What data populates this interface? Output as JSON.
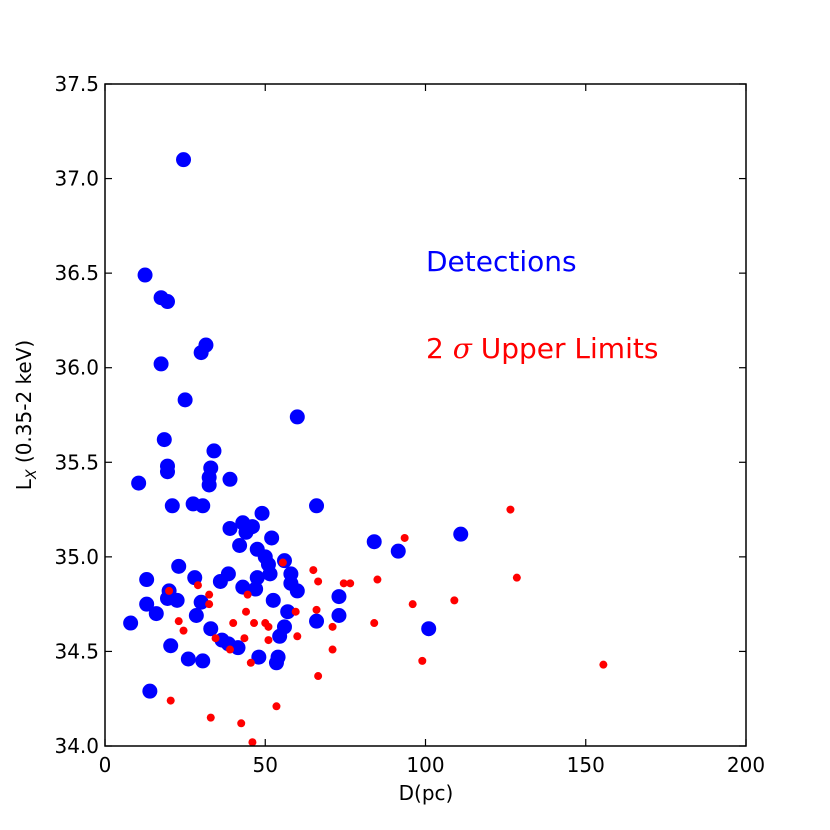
{
  "chart_data": {
    "type": "scatter",
    "xlabel": "D(pc)",
    "ylabel": "L",
    "ylabel_sub": "X",
    "ylabel_rest": " (0.35-2 keV)",
    "xlim": [
      0,
      200
    ],
    "ylim": [
      34.0,
      37.5
    ],
    "x_ticks": [
      0,
      50,
      100,
      150,
      200
    ],
    "y_ticks": [
      34.0,
      34.5,
      35.0,
      35.5,
      36.0,
      36.5,
      37.0,
      37.5
    ],
    "x_tick_labels": [
      "0",
      "50",
      "100",
      "150",
      "200"
    ],
    "y_tick_labels": [
      "34.0",
      "34.5",
      "35.0",
      "35.5",
      "36.0",
      "36.5",
      "37.0",
      "37.5"
    ],
    "grid": false,
    "annotations": [
      {
        "text": "Detections",
        "color": "#0000ff"
      },
      {
        "text_prefix": "2 ",
        "symbol": "σ",
        "text_suffix": " Upper Limits",
        "color": "#ff0000"
      }
    ],
    "series": [
      {
        "color": "#0000ff",
        "marker": "large-circle",
        "points": [
          [
            24.5,
            37.1
          ],
          [
            12.5,
            36.49
          ],
          [
            17.5,
            36.37
          ],
          [
            19.5,
            36.35
          ],
          [
            31.5,
            36.12
          ],
          [
            30.0,
            36.08
          ],
          [
            17.5,
            36.02
          ],
          [
            25.0,
            35.83
          ],
          [
            60.0,
            35.74
          ],
          [
            18.5,
            35.62
          ],
          [
            34.0,
            35.56
          ],
          [
            19.5,
            35.48
          ],
          [
            33.0,
            35.47
          ],
          [
            19.5,
            35.45
          ],
          [
            32.5,
            35.42
          ],
          [
            39.0,
            35.41
          ],
          [
            32.5,
            35.38
          ],
          [
            10.5,
            35.39
          ],
          [
            21.0,
            35.27
          ],
          [
            27.5,
            35.28
          ],
          [
            30.5,
            35.27
          ],
          [
            66.0,
            35.27
          ],
          [
            49.0,
            35.23
          ],
          [
            43.0,
            35.18
          ],
          [
            39.0,
            35.15
          ],
          [
            46.0,
            35.16
          ],
          [
            111.0,
            35.12
          ],
          [
            44.0,
            35.13
          ],
          [
            52.0,
            35.1
          ],
          [
            84.0,
            35.08
          ],
          [
            42.0,
            35.06
          ],
          [
            47.5,
            35.04
          ],
          [
            91.5,
            35.03
          ],
          [
            50.0,
            35.0
          ],
          [
            56.0,
            34.98
          ],
          [
            51.0,
            34.96
          ],
          [
            23.0,
            34.95
          ],
          [
            58.0,
            34.91
          ],
          [
            51.5,
            34.91
          ],
          [
            38.5,
            34.91
          ],
          [
            47.5,
            34.89
          ],
          [
            28.0,
            34.89
          ],
          [
            36.0,
            34.87
          ],
          [
            13.0,
            34.88
          ],
          [
            58.0,
            34.86
          ],
          [
            43.0,
            34.84
          ],
          [
            47.0,
            34.83
          ],
          [
            20.0,
            34.82
          ],
          [
            60.0,
            34.82
          ],
          [
            73.0,
            34.79
          ],
          [
            19.5,
            34.78
          ],
          [
            52.5,
            34.77
          ],
          [
            22.5,
            34.77
          ],
          [
            30.0,
            34.76
          ],
          [
            13.0,
            34.75
          ],
          [
            57.0,
            34.71
          ],
          [
            16.0,
            34.7
          ],
          [
            73.0,
            34.69
          ],
          [
            28.5,
            34.69
          ],
          [
            66.0,
            34.66
          ],
          [
            8.0,
            34.65
          ],
          [
            56.0,
            34.63
          ],
          [
            101.0,
            34.62
          ],
          [
            33.0,
            34.62
          ],
          [
            54.5,
            34.58
          ],
          [
            36.5,
            34.56
          ],
          [
            38.5,
            34.54
          ],
          [
            41.5,
            34.52
          ],
          [
            20.5,
            34.53
          ],
          [
            26.0,
            34.46
          ],
          [
            48.0,
            34.47
          ],
          [
            54.0,
            34.47
          ],
          [
            30.5,
            34.45
          ],
          [
            53.5,
            34.44
          ],
          [
            14.0,
            34.29
          ]
        ]
      },
      {
        "color": "#ff0000",
        "marker": "small-circle",
        "points": [
          [
            126.5,
            35.25
          ],
          [
            93.5,
            35.1
          ],
          [
            55.5,
            34.97
          ],
          [
            65.0,
            34.93
          ],
          [
            128.5,
            34.89
          ],
          [
            85.0,
            34.88
          ],
          [
            66.5,
            34.87
          ],
          [
            76.5,
            34.86
          ],
          [
            74.5,
            34.86
          ],
          [
            29.0,
            34.85
          ],
          [
            20.0,
            34.82
          ],
          [
            32.5,
            34.8
          ],
          [
            44.5,
            34.8
          ],
          [
            109.0,
            34.77
          ],
          [
            32.5,
            34.75
          ],
          [
            96.0,
            34.75
          ],
          [
            66.0,
            34.72
          ],
          [
            59.5,
            34.71
          ],
          [
            44.0,
            34.71
          ],
          [
            23.0,
            34.66
          ],
          [
            46.5,
            34.65
          ],
          [
            40.0,
            34.65
          ],
          [
            50.0,
            34.65
          ],
          [
            84.0,
            34.65
          ],
          [
            51.0,
            34.63
          ],
          [
            71.0,
            34.63
          ],
          [
            24.5,
            34.61
          ],
          [
            60.0,
            34.58
          ],
          [
            34.5,
            34.57
          ],
          [
            43.5,
            34.57
          ],
          [
            51.0,
            34.56
          ],
          [
            39.0,
            34.51
          ],
          [
            71.0,
            34.51
          ],
          [
            99.0,
            34.45
          ],
          [
            155.5,
            34.43
          ],
          [
            45.5,
            34.44
          ],
          [
            66.5,
            34.37
          ],
          [
            20.5,
            34.24
          ],
          [
            53.5,
            34.21
          ],
          [
            33.0,
            34.15
          ],
          [
            42.5,
            34.12
          ],
          [
            46.0,
            34.02
          ]
        ]
      }
    ]
  }
}
